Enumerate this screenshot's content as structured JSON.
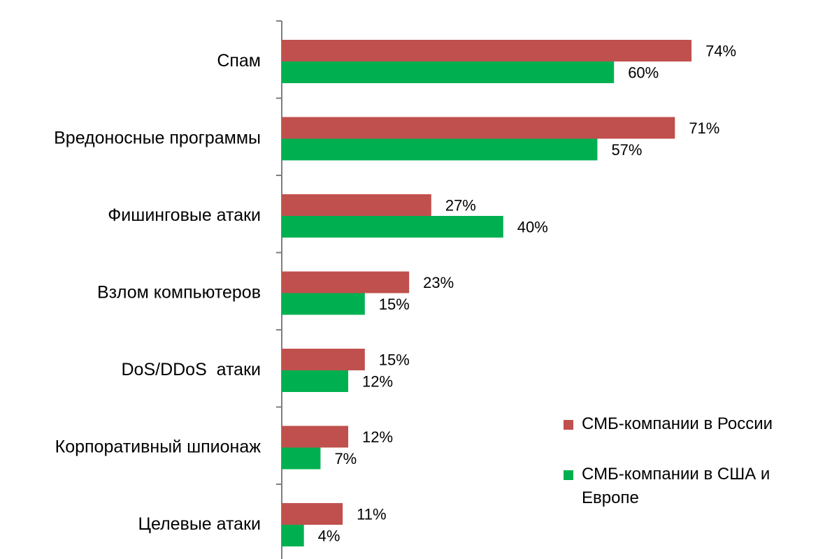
{
  "chart_data": {
    "type": "bar",
    "orientation": "horizontal",
    "categories": [
      "Спам",
      "Вредоносные программы",
      "Фишинговые атаки",
      "Взлом компьютеров",
      "DoS/DDoS  атаки",
      "Корпоративный шпионаж",
      "Целевые атаки"
    ],
    "series": [
      {
        "name": "СМБ-компании в России",
        "color": "#c0504d",
        "values": [
          74,
          71,
          27,
          23,
          15,
          12,
          11
        ],
        "labels": [
          "74%",
          "71%",
          "27%",
          "23%",
          "15%",
          "12%",
          "11%"
        ]
      },
      {
        "name": "СМБ-компании в США и Европе",
        "color": "#00b050",
        "values": [
          60,
          57,
          40,
          15,
          12,
          7,
          4
        ],
        "labels": [
          "60%",
          "57%",
          "40%",
          "15%",
          "12%",
          "7%",
          "4%"
        ]
      }
    ],
    "xlim": [
      0,
      80
    ],
    "grid": false,
    "legend": "bottom-right"
  }
}
